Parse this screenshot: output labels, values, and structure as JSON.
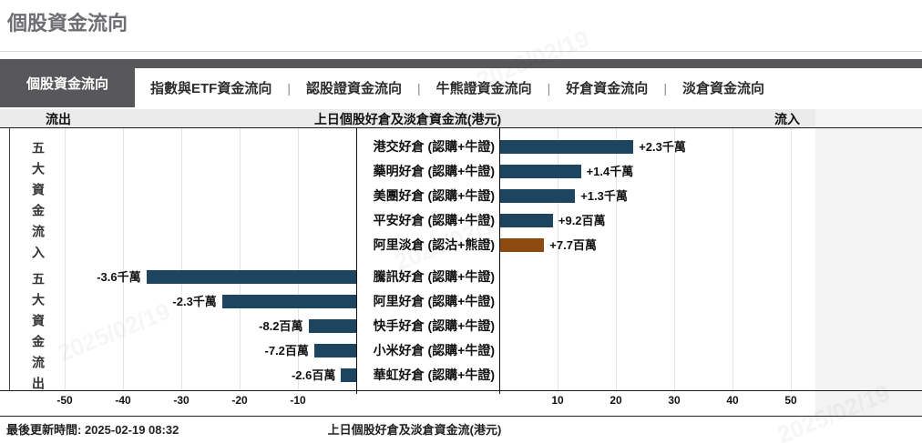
{
  "page": {
    "title": "個股資金流向"
  },
  "tabs": [
    {
      "label": "個股資金流向",
      "active": true
    },
    {
      "label": "指數與ETF資金流向",
      "active": false
    },
    {
      "label": "認股證資金流向",
      "active": false
    },
    {
      "label": "牛熊證資金流向",
      "active": false
    },
    {
      "label": "好倉資金流向",
      "active": false
    },
    {
      "label": "淡倉資金流向",
      "active": false
    }
  ],
  "tab_separator": "|",
  "chart_header": {
    "left": "流出",
    "center": "上日個股好倉及淡倉資金流(港元)",
    "right": "流入"
  },
  "footer": {
    "last_updated": "最後更新時間: 2025-02-19 08:32",
    "caption": "上日個股好倉及淡倉資金流(港元)"
  },
  "watermark": "2025/02/19",
  "colors": {
    "bar_long": "#1d455f",
    "bar_short": "#8a4a10",
    "active_tab": "#58585b",
    "header_strip": "#ebebeb",
    "title_gray": "#6d6e71"
  },
  "chart_data": {
    "type": "bar",
    "orientation": "horizontal",
    "title": "上日個股好倉及淡倉資金流(港元)",
    "unit": "百萬港元",
    "xlim": [
      -60,
      55
    ],
    "ticks": [
      -50,
      -40,
      -30,
      -20,
      -10,
      10,
      20,
      30,
      40,
      50
    ],
    "grid": true,
    "groups": [
      {
        "label": "五大資金流入",
        "rows": [
          {
            "name": "港交好倉 (認購+牛證)",
            "value": 23,
            "value_label": "+2.3千萬",
            "color": "#1d455f"
          },
          {
            "name": "藥明好倉 (認購+牛證)",
            "value": 14,
            "value_label": "+1.4千萬",
            "color": "#1d455f"
          },
          {
            "name": "美團好倉 (認購+牛證)",
            "value": 13,
            "value_label": "+1.3千萬",
            "color": "#1d455f"
          },
          {
            "name": "平安好倉 (認購+牛證)",
            "value": 9.2,
            "value_label": "+9.2百萬",
            "color": "#1d455f"
          },
          {
            "name": "阿里淡倉 (認沽+熊證)",
            "value": 7.7,
            "value_label": "+7.7百萬",
            "color": "#8a4a10"
          }
        ]
      },
      {
        "label": "五大資金流出",
        "rows": [
          {
            "name": "騰訊好倉 (認購+牛證)",
            "value": -36,
            "value_label": "-3.6千萬",
            "color": "#1d455f"
          },
          {
            "name": "阿里好倉 (認購+牛證)",
            "value": -23,
            "value_label": "-2.3千萬",
            "color": "#1d455f"
          },
          {
            "name": "快手好倉 (認購+牛證)",
            "value": -8.2,
            "value_label": "-8.2百萬",
            "color": "#1d455f"
          },
          {
            "name": "小米好倉 (認購+牛證)",
            "value": -7.2,
            "value_label": "-7.2百萬",
            "color": "#1d455f"
          },
          {
            "name": "華虹好倉 (認購+牛證)",
            "value": -2.6,
            "value_label": "-2.6百萬",
            "color": "#1d455f"
          }
        ]
      }
    ]
  }
}
